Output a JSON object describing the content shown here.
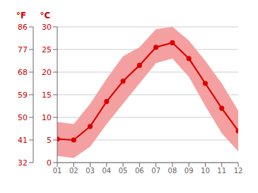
{
  "chart_data": {
    "type": "line",
    "x": [
      1,
      2,
      3,
      4,
      5,
      6,
      7,
      8,
      9,
      10,
      11,
      12
    ],
    "xlim": [
      1,
      12
    ],
    "xticks": [
      {
        "value": 1,
        "label": "01"
      },
      {
        "value": 2,
        "label": "02"
      },
      {
        "value": 3,
        "label": "03"
      },
      {
        "value": 4,
        "label": "04"
      },
      {
        "value": 5,
        "label": "05"
      },
      {
        "value": 6,
        "label": "06"
      },
      {
        "value": 7,
        "label": "07"
      },
      {
        "value": 8,
        "label": "08"
      },
      {
        "value": 9,
        "label": "09"
      },
      {
        "value": 10,
        "label": "10"
      },
      {
        "value": 11,
        "label": "11"
      },
      {
        "value": 12,
        "label": "12"
      }
    ],
    "ylabel": "°C",
    "ylim": [
      0,
      30
    ],
    "yticks": [
      0,
      5,
      10,
      15,
      20,
      25,
      30
    ],
    "y2label": "°F",
    "y2lim": [
      32,
      86
    ],
    "y2ticks": [
      32,
      41,
      50,
      59,
      68,
      77,
      86
    ],
    "grid": true,
    "series": [
      {
        "type": "band",
        "color": "#f5a0a0",
        "lower": [
          1.5,
          1.0,
          3.5,
          8.5,
          13.0,
          17.5,
          22.0,
          23.0,
          19.0,
          12.5,
          6.5,
          2.5
        ],
        "upper": [
          9.0,
          8.5,
          13.0,
          18.5,
          23.5,
          25.5,
          29.5,
          30.0,
          27.0,
          22.5,
          17.5,
          11.5
        ]
      },
      {
        "type": "line",
        "color": "#dd0000",
        "marker": "o",
        "values": [
          5.2,
          5.0,
          8.0,
          13.5,
          18.0,
          21.5,
          25.5,
          26.5,
          23.0,
          17.5,
          12.0,
          7.0
        ]
      }
    ]
  }
}
